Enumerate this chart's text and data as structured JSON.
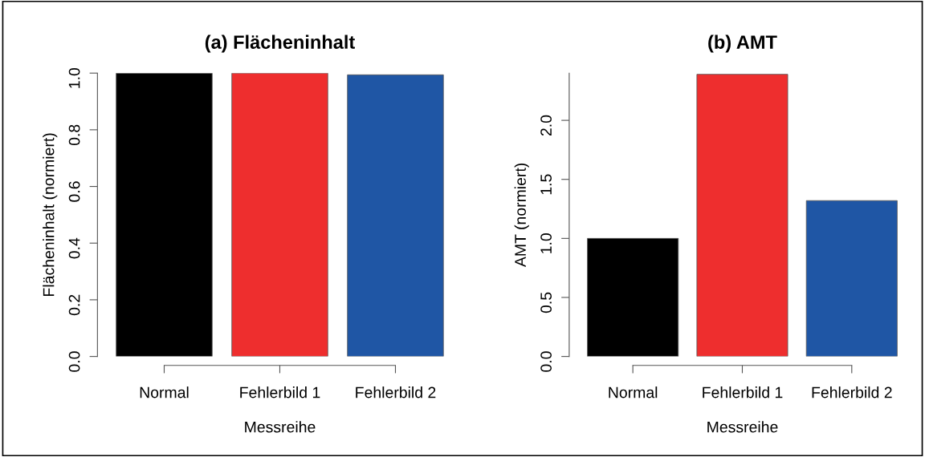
{
  "chart_data": [
    {
      "type": "bar",
      "title": "(a) Flächeninhalt",
      "xlabel": "Messreihe",
      "ylabel": "Flächeninhalt (normiert)",
      "categories": [
        "Normal",
        "Fehlerbild 1",
        "Fehlerbild 2"
      ],
      "values": [
        1.0,
        1.0,
        0.994
      ],
      "colors": [
        "#000000",
        "#ee2e2e",
        "#1f56a5"
      ],
      "ylim": [
        0,
        1.0
      ],
      "yticks": [
        {
          "value": 0,
          "label": "0.0"
        },
        0.2,
        0.4,
        0.6,
        0.8,
        {
          "value": 1,
          "label": "1.0"
        }
      ],
      "grid": false,
      "legend": false
    },
    {
      "type": "bar",
      "title": "(b) AMT",
      "xlabel": "Messreihe",
      "ylabel": "AMT (normiert)",
      "categories": [
        "Normal",
        "Fehlerbild 1",
        "Fehlerbild 2"
      ],
      "values": [
        1.0,
        2.39,
        1.32
      ],
      "colors": [
        "#000000",
        "#ee2e2e",
        "#1f56a5"
      ],
      "ylim": [
        0,
        2.4
      ],
      "yticks": [
        {
          "value": 0,
          "label": "0.0"
        },
        0.5,
        {
          "value": 1,
          "label": "1.0"
        },
        1.5,
        {
          "value": 2,
          "label": "2.0"
        }
      ],
      "grid": false,
      "legend": false
    }
  ]
}
